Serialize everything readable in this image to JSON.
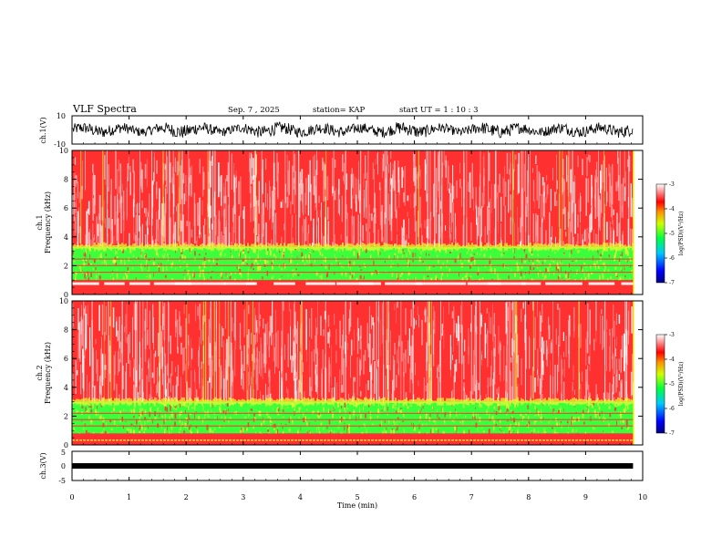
{
  "header": {
    "title": "VLF Spectra",
    "date": "Sep. 7 , 2025",
    "station": "station= KAP",
    "start": "start  UT  =   1 : 10 : 3"
  },
  "chart_data": [
    {
      "type": "line",
      "name": "ch1-waveform",
      "ylabel": "ch.1(V)",
      "ylim": [
        -10,
        10
      ],
      "yticks": [
        "10",
        "-10"
      ],
      "xlim": [
        0,
        10
      ],
      "data_end_min": 9.83,
      "description_values": {
        "baseline_v": 0,
        "amplitude_v": 4
      }
    },
    {
      "type": "heatmap",
      "name": "ch1-spectrogram",
      "ylabel_ch": "ch.1",
      "ylabel": "Frequency  (kHz)",
      "ylim": [
        0,
        10
      ],
      "yticks": [
        "0",
        "2",
        "4",
        "6",
        "8",
        "10"
      ],
      "xlim": [
        0,
        10
      ],
      "band_khz": {
        "green_low": 1.0,
        "green_high": 3.3,
        "red_low": 0.0,
        "white_line": 0.75
      },
      "colorbar": {
        "label": "log(PSD)(V²/Hz)",
        "ticks": [
          "-3",
          "-4",
          "-5",
          "-6",
          "-7"
        ],
        "range": [
          -7,
          -3
        ]
      }
    },
    {
      "type": "heatmap",
      "name": "ch2-spectrogram",
      "ylabel_ch": "ch.2",
      "ylabel": "Frequency  (kHz)",
      "ylim": [
        0,
        10
      ],
      "yticks": [
        "0",
        "2",
        "4",
        "6",
        "8",
        "10"
      ],
      "xlim": [
        0,
        10
      ],
      "band_khz": {
        "green_low": 0.8,
        "green_high": 3.0,
        "red_low": 0.0
      },
      "colorbar": {
        "label": "log(PSD)(V²/Hz)",
        "ticks": [
          "-3",
          "-4",
          "-5",
          "-6",
          "-7"
        ],
        "range": [
          -7,
          -3
        ]
      }
    },
    {
      "type": "line",
      "name": "ch3-waveform",
      "ylabel": "ch.3(V)",
      "ylim": [
        -5,
        5
      ],
      "yticks": [
        "5",
        "0",
        "-5"
      ],
      "xlim": [
        0,
        10
      ],
      "values_v": {
        "level": 0.0
      }
    }
  ],
  "xaxis": {
    "label": "Time  (min)",
    "ticks": [
      "0",
      "1",
      "2",
      "3",
      "4",
      "5",
      "6",
      "7",
      "8",
      "9",
      "10"
    ]
  },
  "colors": {
    "red": "#ff3030",
    "pink": "#ffb0b0",
    "green": "#3cff3c",
    "yellow": "#f0ff30",
    "white": "#ffffff"
  }
}
